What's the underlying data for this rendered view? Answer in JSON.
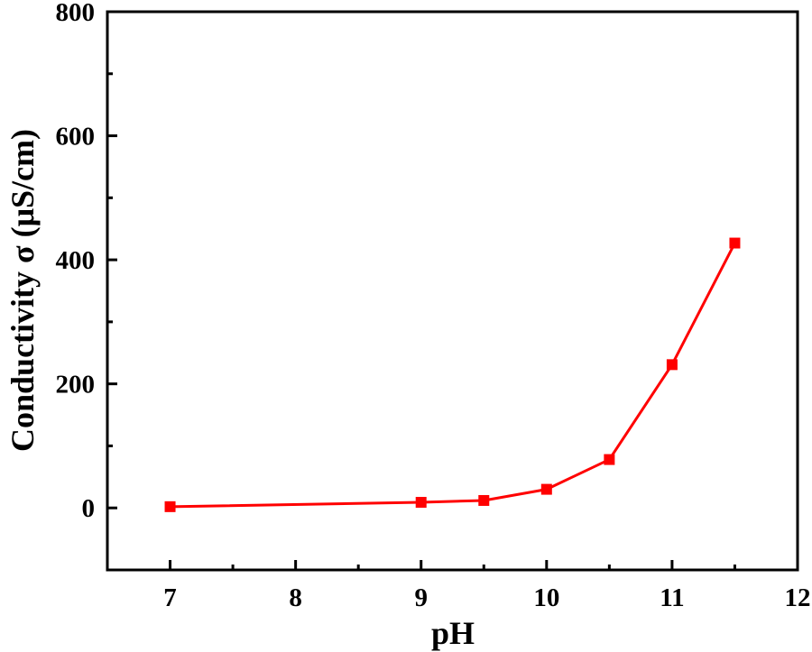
{
  "chart_data": {
    "type": "line",
    "title": "",
    "xlabel": "pH",
    "ylabel": "Conductivity σ (μS/cm)",
    "xlim": [
      6.5,
      12
    ],
    "ylim": [
      -100,
      800
    ],
    "x_ticks": [
      7,
      8,
      9,
      10,
      11,
      12
    ],
    "x_tick_labels": [
      "7",
      "8",
      "9",
      "10",
      "11",
      "12"
    ],
    "y_ticks": [
      0,
      200,
      400,
      600,
      800
    ],
    "y_tick_labels": [
      "0",
      "200",
      "400",
      "600",
      "800"
    ],
    "grid": false,
    "legend": null,
    "series": [
      {
        "name": "Conductivity",
        "color": "#ff0000",
        "marker": "square",
        "x": [
          7,
          9,
          9.5,
          10,
          10.5,
          11,
          11.5
        ],
        "values": [
          2,
          9,
          12,
          30,
          78,
          231,
          427
        ]
      }
    ]
  }
}
